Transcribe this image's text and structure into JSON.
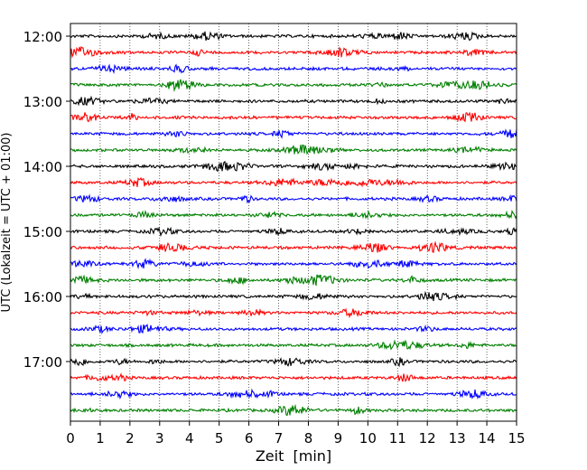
{
  "chart_data": {
    "type": "line",
    "title": "",
    "xlabel": "Zeit  [min]",
    "ylabel": "UTC (Lokalzeit = UTC + 01:00)",
    "xlim": [
      0,
      15
    ],
    "x_ticks": [
      "0",
      "1",
      "2",
      "3",
      "4",
      "5",
      "6",
      "7",
      "8",
      "9",
      "10",
      "11",
      "12",
      "13",
      "14",
      "15"
    ],
    "y_tick_labels": [
      "12:00",
      "13:00",
      "14:00",
      "15:00",
      "16:00",
      "17:00"
    ],
    "trace_interval_min": 15,
    "trace_start": "12:00",
    "trace_count": 24,
    "trace_color_cycle": [
      "#000000",
      "#ff0000",
      "#0000ff",
      "#008000"
    ],
    "grid": "vertical dotted lines at each minute",
    "legend": "none"
  }
}
